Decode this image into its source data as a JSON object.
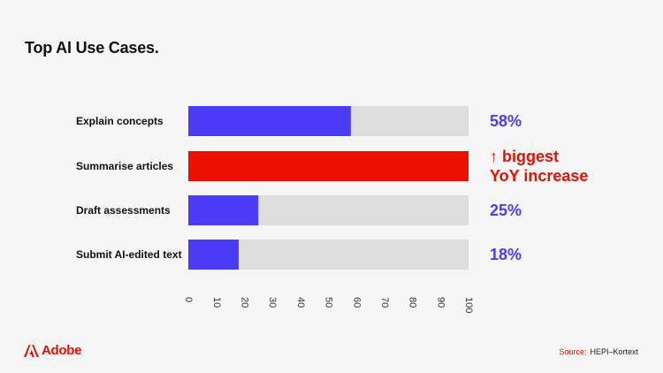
{
  "page": {
    "title": "Top AI Use Cases.",
    "brand": "Adobe",
    "source_label": "Source:",
    "source_text": "HEPI–Kortext"
  },
  "colors": {
    "accent": "#4a3cf7",
    "highlight": "#eb1000",
    "track": "#dddddd",
    "background": "#f6f6f6"
  },
  "chart_data": {
    "type": "bar",
    "orientation": "horizontal",
    "title": "Top AI Use Cases.",
    "xlabel": "",
    "ylabel": "",
    "xlim": [
      0,
      100
    ],
    "x_ticks": [
      "0",
      "10",
      "20",
      "30",
      "40",
      "50",
      "60",
      "70",
      "80",
      "90",
      "100"
    ],
    "grid": false,
    "categories": [
      "Explain concepts",
      "Summarise articles",
      "Draft assessments",
      "Submit AI-edited text"
    ],
    "values": [
      58,
      100,
      25,
      18
    ],
    "data_labels": [
      [
        "58%"
      ],
      [
        "↑ biggest",
        "YoY increase"
      ],
      [
        "25%"
      ],
      [
        "18%"
      ]
    ],
    "highlighted_index": 1
  }
}
